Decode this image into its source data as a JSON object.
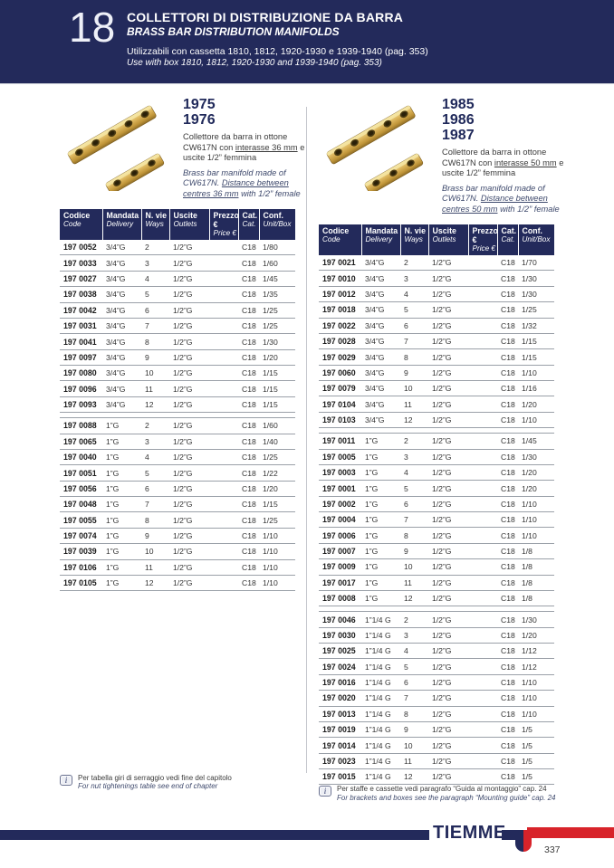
{
  "colors": {
    "navy": "#232a5b",
    "red": "#d8232a",
    "brass": "#d4ac4e",
    "divider": "#c4c6cc"
  },
  "header": {
    "chapter": "18",
    "title_it": "COLLETTORI DI DISTRIBUZIONE DA BARRA",
    "title_en": "BRASS BAR DISTRIBUTION MANIFOLDS",
    "subtitle_it": "Utilizzabili con cassetta 1810, 1812, 1920-1930 e 1939-1940 (pag. 353)",
    "subtitle_en": "Use with box 1810, 1812, 1920-1930 and 1939-1940 (pag. 353)"
  },
  "table_header": {
    "codice": [
      "Codice",
      "Code"
    ],
    "mandata": [
      "Mandata",
      "Delivery"
    ],
    "vie": [
      "N. vie",
      "Ways"
    ],
    "uscite": [
      "Uscite",
      "Outlets"
    ],
    "prezzo": [
      "Prezzo €",
      "Price €"
    ],
    "cat": [
      "Cat.",
      "Cat."
    ],
    "conf": [
      "Conf.",
      "Unit/Box"
    ]
  },
  "left": {
    "models": [
      "1975",
      "1976"
    ],
    "desc_it_pre": "Collettore da barra in ottone CW617N con ",
    "desc_it_u": "interasse 36 mm",
    "desc_it_post": " e uscite 1/2” femmina",
    "desc_en_pre": "Brass bar manifold made of CW617N. ",
    "desc_en_u": "Distance between centres 36 mm",
    "desc_en_post": " with 1/2” female",
    "note_it": "Per tabella giri di serraggio vedi fine del capitolo",
    "note_en": "For nut tightenings table see end of chapter",
    "groups": [
      [
        [
          "197 0052",
          "3/4”G",
          "2",
          "1/2”G",
          "",
          "C18",
          "1/80"
        ],
        [
          "197 0033",
          "3/4”G",
          "3",
          "1/2”G",
          "",
          "C18",
          "1/60"
        ],
        [
          "197 0027",
          "3/4”G",
          "4",
          "1/2”G",
          "",
          "C18",
          "1/45"
        ],
        [
          "197 0038",
          "3/4”G",
          "5",
          "1/2”G",
          "",
          "C18",
          "1/35"
        ],
        [
          "197 0042",
          "3/4”G",
          "6",
          "1/2”G",
          "",
          "C18",
          "1/25"
        ],
        [
          "197 0031",
          "3/4”G",
          "7",
          "1/2”G",
          "",
          "C18",
          "1/25"
        ],
        [
          "197 0041",
          "3/4”G",
          "8",
          "1/2”G",
          "",
          "C18",
          "1/30"
        ],
        [
          "197 0097",
          "3/4”G",
          "9",
          "1/2”G",
          "",
          "C18",
          "1/20"
        ],
        [
          "197 0080",
          "3/4”G",
          "10",
          "1/2”G",
          "",
          "C18",
          "1/15"
        ],
        [
          "197 0096",
          "3/4”G",
          "11",
          "1/2”G",
          "",
          "C18",
          "1/15"
        ],
        [
          "197 0093",
          "3/4”G",
          "12",
          "1/2”G",
          "",
          "C18",
          "1/15"
        ]
      ],
      [
        [
          "197 0088",
          "1”G",
          "2",
          "1/2”G",
          "",
          "C18",
          "1/60"
        ],
        [
          "197 0065",
          "1”G",
          "3",
          "1/2”G",
          "",
          "C18",
          "1/40"
        ],
        [
          "197 0040",
          "1”G",
          "4",
          "1/2”G",
          "",
          "C18",
          "1/25"
        ],
        [
          "197 0051",
          "1”G",
          "5",
          "1/2”G",
          "",
          "C18",
          "1/22"
        ],
        [
          "197 0056",
          "1”G",
          "6",
          "1/2”G",
          "",
          "C18",
          "1/20"
        ],
        [
          "197 0048",
          "1”G",
          "7",
          "1/2”G",
          "",
          "C18",
          "1/15"
        ],
        [
          "197 0055",
          "1”G",
          "8",
          "1/2”G",
          "",
          "C18",
          "1/25"
        ],
        [
          "197 0074",
          "1”G",
          "9",
          "1/2”G",
          "",
          "C18",
          "1/10"
        ],
        [
          "197 0039",
          "1”G",
          "10",
          "1/2”G",
          "",
          "C18",
          "1/10"
        ],
        [
          "197 0106",
          "1”G",
          "11",
          "1/2”G",
          "",
          "C18",
          "1/10"
        ],
        [
          "197 0105",
          "1”G",
          "12",
          "1/2”G",
          "",
          "C18",
          "1/10"
        ]
      ]
    ]
  },
  "right": {
    "models": [
      "1985",
      "1986",
      "1987"
    ],
    "desc_it_pre": "Collettore da barra in ottone CW617N con ",
    "desc_it_u": "interasse 50 mm",
    "desc_it_post": " e uscite 1/2” femmina",
    "desc_en_pre": "Brass bar manifold made of CW617N. ",
    "desc_en_u": "Distance between centres 50 mm",
    "desc_en_post": " with 1/2” female",
    "note_it": "Per staffe e cassette vedi paragrafo “Guida al montaggio” cap. 24",
    "note_en": "For brackets and boxes see the paragraph “Mounting guide” cap. 24",
    "groups": [
      [
        [
          "197 0021",
          "3/4”G",
          "2",
          "1/2”G",
          "",
          "C18",
          "1/70"
        ],
        [
          "197 0010",
          "3/4”G",
          "3",
          "1/2”G",
          "",
          "C18",
          "1/30"
        ],
        [
          "197 0012",
          "3/4”G",
          "4",
          "1/2”G",
          "",
          "C18",
          "1/30"
        ],
        [
          "197 0018",
          "3/4”G",
          "5",
          "1/2”G",
          "",
          "C18",
          "1/25"
        ],
        [
          "197 0022",
          "3/4”G",
          "6",
          "1/2”G",
          "",
          "C18",
          "1/32"
        ],
        [
          "197 0028",
          "3/4”G",
          "7",
          "1/2”G",
          "",
          "C18",
          "1/15"
        ],
        [
          "197 0029",
          "3/4”G",
          "8",
          "1/2”G",
          "",
          "C18",
          "1/15"
        ],
        [
          "197 0060",
          "3/4”G",
          "9",
          "1/2”G",
          "",
          "C18",
          "1/10"
        ],
        [
          "197 0079",
          "3/4”G",
          "10",
          "1/2”G",
          "",
          "C18",
          "1/16"
        ],
        [
          "197 0104",
          "3/4”G",
          "11",
          "1/2”G",
          "",
          "C18",
          "1/20"
        ],
        [
          "197 0103",
          "3/4”G",
          "12",
          "1/2”G",
          "",
          "C18",
          "1/10"
        ]
      ],
      [
        [
          "197 0011",
          "1”G",
          "2",
          "1/2”G",
          "",
          "C18",
          "1/45"
        ],
        [
          "197 0005",
          "1”G",
          "3",
          "1/2”G",
          "",
          "C18",
          "1/30"
        ],
        [
          "197 0003",
          "1”G",
          "4",
          "1/2”G",
          "",
          "C18",
          "1/20"
        ],
        [
          "197 0001",
          "1”G",
          "5",
          "1/2”G",
          "",
          "C18",
          "1/20"
        ],
        [
          "197 0002",
          "1”G",
          "6",
          "1/2”G",
          "",
          "C18",
          "1/10"
        ],
        [
          "197 0004",
          "1”G",
          "7",
          "1/2”G",
          "",
          "C18",
          "1/10"
        ],
        [
          "197 0006",
          "1”G",
          "8",
          "1/2”G",
          "",
          "C18",
          "1/10"
        ],
        [
          "197 0007",
          "1”G",
          "9",
          "1/2”G",
          "",
          "C18",
          "1/8"
        ],
        [
          "197 0009",
          "1”G",
          "10",
          "1/2”G",
          "",
          "C18",
          "1/8"
        ],
        [
          "197 0017",
          "1”G",
          "11",
          "1/2”G",
          "",
          "C18",
          "1/8"
        ],
        [
          "197 0008",
          "1”G",
          "12",
          "1/2”G",
          "",
          "C18",
          "1/8"
        ]
      ],
      [
        [
          "197 0046",
          "1”1/4 G",
          "2",
          "1/2”G",
          "",
          "C18",
          "1/30"
        ],
        [
          "197 0030",
          "1”1/4 G",
          "3",
          "1/2”G",
          "",
          "C18",
          "1/20"
        ],
        [
          "197 0025",
          "1”1/4 G",
          "4",
          "1/2”G",
          "",
          "C18",
          "1/12"
        ],
        [
          "197 0024",
          "1”1/4 G",
          "5",
          "1/2”G",
          "",
          "C18",
          "1/12"
        ],
        [
          "197 0016",
          "1”1/4 G",
          "6",
          "1/2”G",
          "",
          "C18",
          "1/10"
        ],
        [
          "197 0020",
          "1”1/4 G",
          "7",
          "1/2”G",
          "",
          "C18",
          "1/10"
        ],
        [
          "197 0013",
          "1”1/4 G",
          "8",
          "1/2”G",
          "",
          "C18",
          "1/10"
        ],
        [
          "197 0019",
          "1”1/4 G",
          "9",
          "1/2”G",
          "",
          "C18",
          "1/5"
        ],
        [
          "197 0014",
          "1”1/4 G",
          "10",
          "1/2”G",
          "",
          "C18",
          "1/5"
        ],
        [
          "197 0023",
          "1”1/4 G",
          "11",
          "1/2”G",
          "",
          "C18",
          "1/5"
        ],
        [
          "197 0015",
          "1”1/4 G",
          "12",
          "1/2”G",
          "",
          "C18",
          "1/5"
        ]
      ]
    ]
  },
  "icons": {
    "info": "i"
  },
  "footer": {
    "brand": "TIEMME",
    "page_number": "337"
  }
}
